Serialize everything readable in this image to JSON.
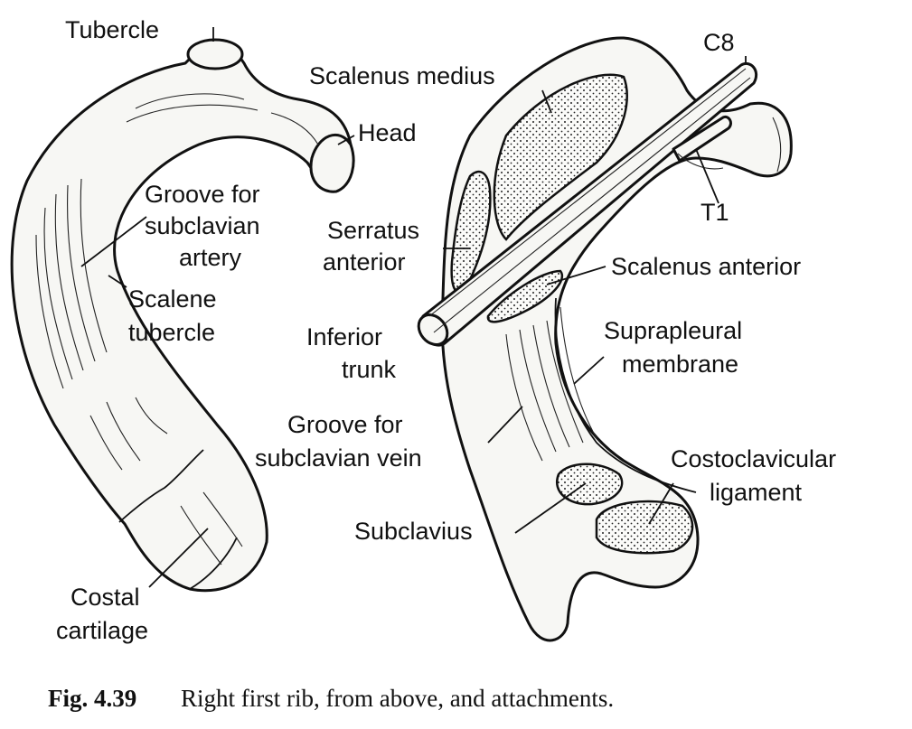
{
  "figure": {
    "caption": {
      "number": "Fig. 4.39",
      "text": "Right first rib, from above, and attachments."
    },
    "left_labels": {
      "tubercle": "Tubercle",
      "head": "Head",
      "groove_artery": [
        "Groove for",
        "subclavian",
        "artery"
      ],
      "scalene_tubercle": [
        "Scalene",
        "tubercle"
      ],
      "costal_cartilage": [
        "Costal",
        "cartilage"
      ]
    },
    "right_labels": {
      "c8": "C8",
      "t1": "T1",
      "scalenus_medius": "Scalenus medius",
      "serratus_anterior": [
        "Serratus",
        "anterior"
      ],
      "scalenus_anterior": "Scalenus anterior",
      "inferior_trunk": [
        "Inferior",
        "trunk"
      ],
      "suprapleural_membrane": [
        "Suprapleural",
        "membrane"
      ],
      "groove_vein": [
        "Groove for",
        "subclavian vein"
      ],
      "costoclavicular_ligament": [
        "Costoclavicular",
        "ligament"
      ],
      "subclavius": "Subclavius"
    }
  }
}
